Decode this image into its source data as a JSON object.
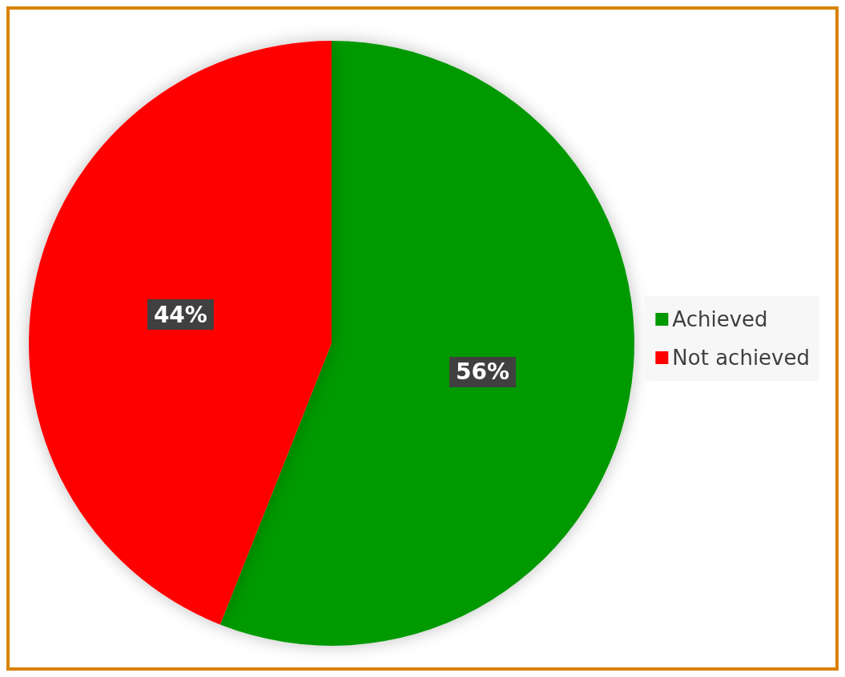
{
  "chart_data": {
    "type": "pie",
    "categories": [
      "Achieved",
      "Not achieved"
    ],
    "values": [
      56,
      44
    ],
    "colors": [
      "#009900",
      "#ff0000"
    ],
    "value_labels": [
      "56%",
      "44%"
    ],
    "legend": "right"
  }
}
